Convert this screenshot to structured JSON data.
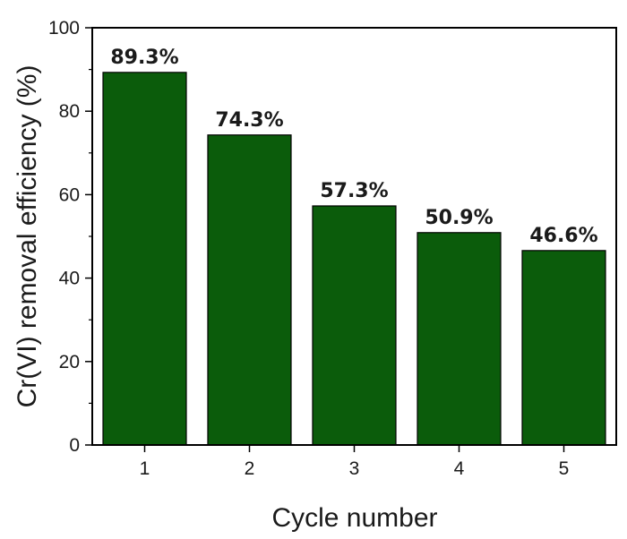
{
  "chart_data": {
    "type": "bar",
    "categories": [
      "1",
      "2",
      "3",
      "4",
      "5"
    ],
    "values": [
      89.3,
      74.3,
      57.3,
      50.9,
      46.6
    ],
    "data_labels": [
      "89.3%",
      "74.3%",
      "57.3%",
      "50.9%",
      "46.6%"
    ],
    "title": "",
    "xlabel": "Cycle number",
    "ylabel": "Cr(VI) removal efficiency (%)",
    "ylim": [
      0,
      100
    ],
    "yticks": [
      0,
      20,
      40,
      60,
      80,
      100
    ],
    "ytick_labels": [
      "0",
      "20",
      "40",
      "60",
      "80",
      "100"
    ],
    "grid": false,
    "legend": "none",
    "bar_color": "#0b5c0b",
    "bar_edge_color": "#000000"
  }
}
